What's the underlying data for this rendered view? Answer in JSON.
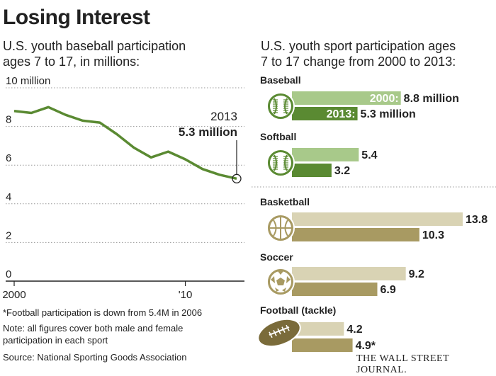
{
  "title": "Losing Interest",
  "left": {
    "subtitle_line1": "U.S. youth baseball participation",
    "subtitle_line2": "ages 7 to 17, in millions:",
    "callout_year": "2013",
    "callout_value": "5.3 million"
  },
  "right": {
    "subtitle_line1": "U.S. youth sport participation ages",
    "subtitle_line2": "7 to 17 change from 2000 to 2013:",
    "legend_2000": "2000:",
    "legend_2013": "2013:"
  },
  "footnotes": {
    "football": "*Football participation is down from 5.4M in 2006",
    "note1": "Note: all figures cover both male and female",
    "note2": "participation in each sport",
    "source": "Source: National Sporting Goods Association"
  },
  "credit": "THE WALL STREET JOURNAL.",
  "colors": {
    "green_dark": "#5a8a32",
    "green_light": "#a8c98a",
    "tan_dark": "#a89a62",
    "tan_light": "#d9d3b4"
  },
  "chart_data": [
    {
      "type": "line",
      "title": "U.S. youth baseball participation ages 7 to 17, in millions:",
      "ylim": [
        0,
        10
      ],
      "yticks": [
        "0",
        "2",
        "4",
        "6",
        "8",
        "10 million"
      ],
      "xticks": [
        "2000",
        "'10"
      ],
      "x": [
        2000,
        2001,
        2002,
        2003,
        2004,
        2005,
        2006,
        2007,
        2008,
        2009,
        2010,
        2011,
        2012,
        2013
      ],
      "series": [
        {
          "values": [
            8.8,
            8.7,
            9.0,
            8.6,
            8.3,
            8.2,
            7.6,
            6.9,
            6.4,
            6.7,
            6.3,
            5.8,
            5.5,
            5.3
          ]
        }
      ],
      "grid": "dotted horizontal"
    },
    {
      "type": "bar",
      "orientation": "horizontal",
      "title": "U.S. youth sport participation ages 7 to 17 change from 2000 to 2013:",
      "categories": [
        "Baseball",
        "Softball",
        "Basketball",
        "Soccer",
        "Football (tackle)"
      ],
      "series": [
        {
          "name": "2000",
          "values": [
            8.8,
            5.4,
            13.8,
            9.2,
            4.2
          ]
        },
        {
          "name": "2013",
          "values": [
            5.3,
            3.2,
            10.3,
            6.9,
            4.9
          ]
        }
      ],
      "value_labels_2000": [
        "8.8 million",
        "5.4",
        "13.8",
        "9.2",
        "4.2"
      ],
      "value_labels_2013": [
        "5.3 million",
        "3.2",
        "10.3",
        "6.9",
        "4.9*"
      ],
      "icons": [
        "baseball-icon",
        "softball-icon",
        "basketball-icon",
        "soccer-ball-icon",
        "football-icon"
      ]
    }
  ]
}
